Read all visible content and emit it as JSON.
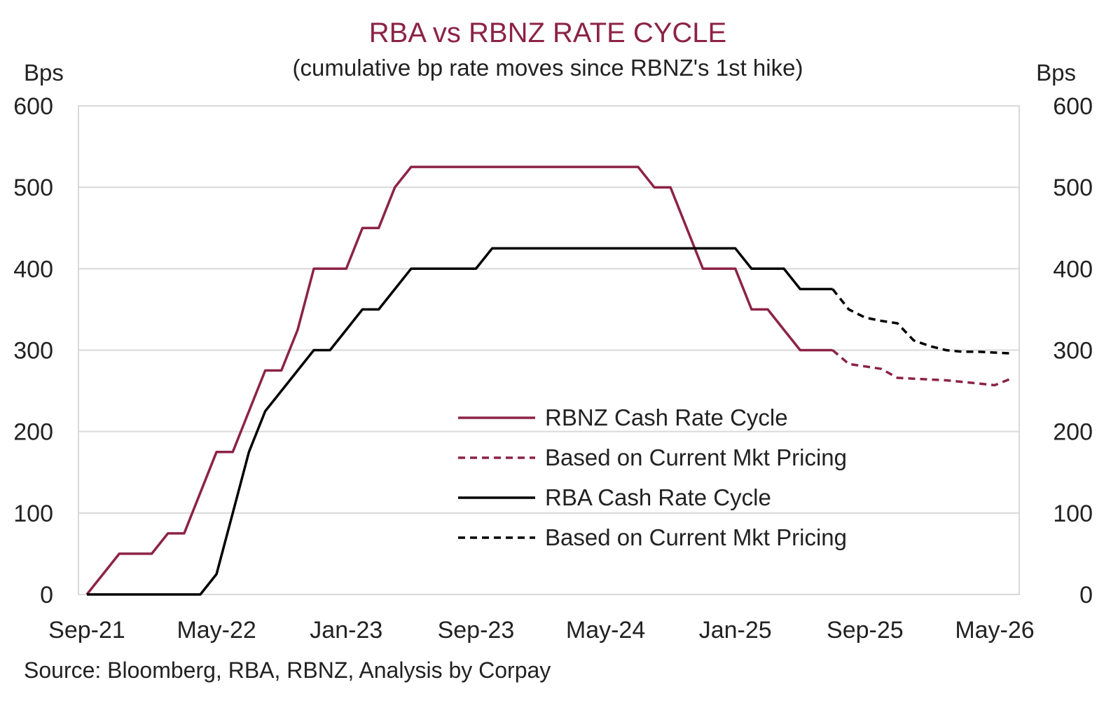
{
  "chart_data": {
    "type": "line",
    "title": "RBA vs RBNZ RATE CYCLE",
    "subtitle": "(cumulative bp rate moves since RBNZ's 1st hike)",
    "ylabel_left": "Bps",
    "ylabel_right": "Bps",
    "ylim": [
      0,
      600
    ],
    "yticks": [
      "0",
      "100",
      "200",
      "300",
      "400",
      "500",
      "600"
    ],
    "x_tick_labels": [
      "Sep-21",
      "May-22",
      "Jan-23",
      "Sep-23",
      "May-24",
      "Jan-25",
      "Sep-25",
      "May-26"
    ],
    "x_tick_dates": [
      "2021-09",
      "2022-05",
      "2023-01",
      "2023-09",
      "2024-05",
      "2025-01",
      "2025-09",
      "2026-05"
    ],
    "grid": true,
    "legend_position": "lower-center",
    "source": "Source: Bloomberg, RBA, RBNZ, Analysis by Corpay",
    "colors": {
      "rbnz": "#8c2346",
      "rba": "#000000",
      "title": "#8c2346"
    },
    "series": [
      {
        "name": "RBNZ Cash Rate Cycle",
        "color": "#8c2346",
        "dash": "solid",
        "x": [
          "2021-09",
          "2021-11",
          "2022-01",
          "2022-02",
          "2022-03",
          "2022-04",
          "2022-05",
          "2022-06",
          "2022-07",
          "2022-08",
          "2022-09",
          "2022-10",
          "2022-11",
          "2022-12",
          "2023-01",
          "2023-02",
          "2023-03",
          "2023-04",
          "2023-05",
          "2023-06",
          "2024-07",
          "2024-08",
          "2024-09",
          "2024-10",
          "2024-11",
          "2024-12",
          "2025-01",
          "2025-02",
          "2025-03",
          "2025-04",
          "2025-05",
          "2025-06",
          "2025-07"
        ],
        "values": [
          0,
          50,
          50,
          75,
          75,
          125,
          175,
          175,
          225,
          275,
          275,
          325,
          400,
          400,
          400,
          450,
          450,
          500,
          525,
          525,
          525,
          500,
          500,
          450,
          400,
          400,
          400,
          350,
          350,
          325,
          300,
          300,
          300
        ]
      },
      {
        "name": "Based on Current Mkt Pricing",
        "color": "#8c2346",
        "dash": "dashed",
        "x": [
          "2025-07",
          "2025-08",
          "2025-09",
          "2025-10",
          "2025-11",
          "2025-12",
          "2026-01",
          "2026-02",
          "2026-03",
          "2026-04",
          "2026-05",
          "2026-06"
        ],
        "values": [
          300,
          283,
          280,
          277,
          266,
          265,
          264,
          263,
          261,
          259,
          257,
          265
        ]
      },
      {
        "name": "RBA Cash Rate Cycle",
        "color": "#000000",
        "dash": "solid",
        "x": [
          "2021-09",
          "2022-04",
          "2022-05",
          "2022-06",
          "2022-07",
          "2022-08",
          "2022-09",
          "2022-10",
          "2022-11",
          "2022-12",
          "2023-01",
          "2023-02",
          "2023-03",
          "2023-04",
          "2023-05",
          "2023-06",
          "2023-07",
          "2023-08",
          "2023-09",
          "2023-10",
          "2023-11",
          "2025-01",
          "2025-02",
          "2025-03",
          "2025-04",
          "2025-05",
          "2025-06",
          "2025-07"
        ],
        "values": [
          0,
          0,
          25,
          100,
          175,
          225,
          250,
          275,
          300,
          300,
          325,
          350,
          350,
          375,
          400,
          400,
          400,
          400,
          400,
          425,
          425,
          425,
          400,
          400,
          400,
          375,
          375,
          375
        ]
      },
      {
        "name": "Based on Current Mkt Pricing",
        "color": "#000000",
        "dash": "dashed",
        "x": [
          "2025-07",
          "2025-08",
          "2025-09",
          "2025-10",
          "2025-11",
          "2025-12",
          "2026-01",
          "2026-02",
          "2026-03",
          "2026-04",
          "2026-05",
          "2026-06"
        ],
        "values": [
          375,
          350,
          340,
          336,
          333,
          312,
          305,
          300,
          298,
          298,
          297,
          296
        ]
      }
    ]
  }
}
